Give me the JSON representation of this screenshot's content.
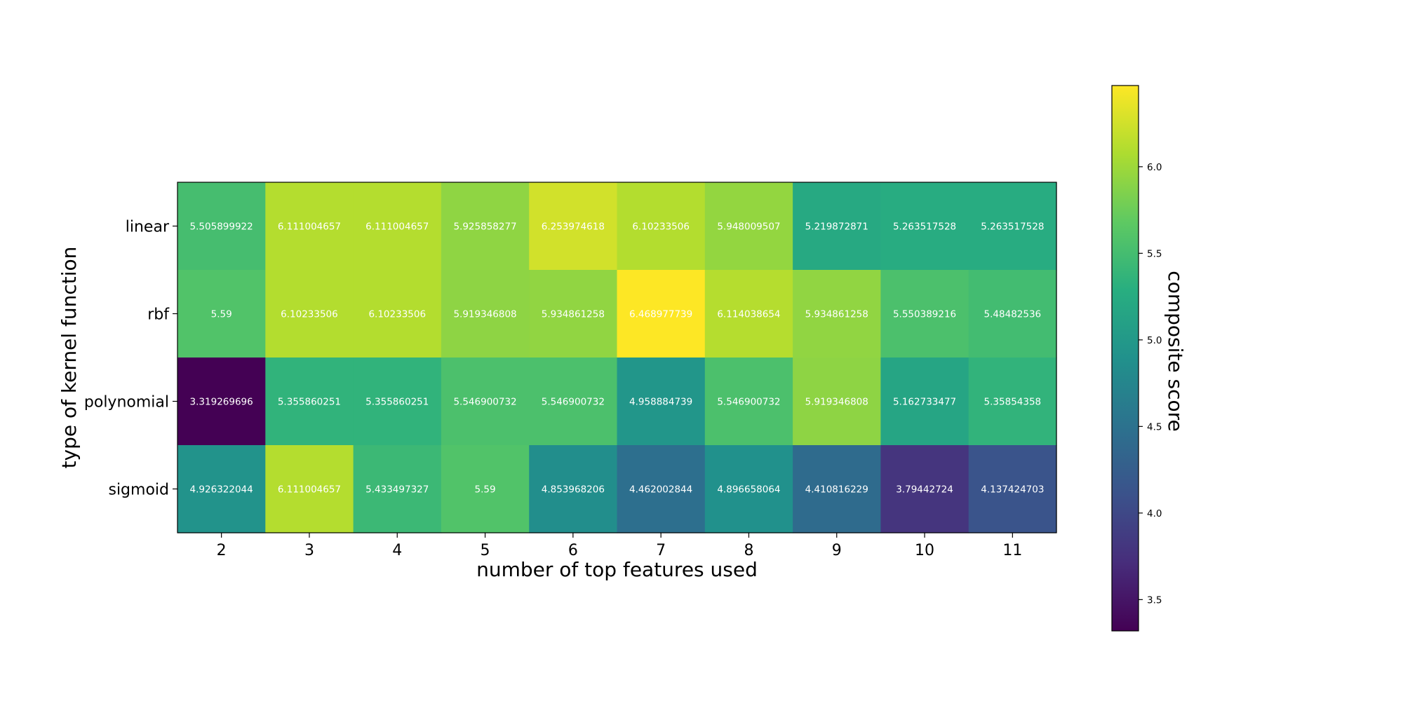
{
  "chart_data": {
    "type": "heatmap",
    "title": "",
    "xlabel": "number of top features used",
    "ylabel": "type of kernel function",
    "x_categories": [
      "2",
      "3",
      "4",
      "5",
      "6",
      "7",
      "8",
      "9",
      "10",
      "11"
    ],
    "y_categories": [
      "linear",
      "rbf",
      "polynomial",
      "sigmoid"
    ],
    "values": [
      [
        5.505899922,
        6.111004657,
        6.111004657,
        5.925858277,
        6.253974618,
        6.10233506,
        5.948009507,
        5.219872871,
        5.263517528,
        5.263517528
      ],
      [
        5.59,
        6.10233506,
        6.10233506,
        5.919346808,
        5.934861258,
        6.468977739,
        6.114038654,
        5.934861258,
        5.550389216,
        5.48482536
      ],
      [
        3.319269696,
        5.355860251,
        5.355860251,
        5.546900732,
        5.546900732,
        4.958884739,
        5.546900732,
        5.919346808,
        5.162733477,
        5.35854358
      ],
      [
        4.926322044,
        6.111004657,
        5.433497327,
        5.59,
        4.853968206,
        4.462002844,
        4.896658064,
        4.410816229,
        3.79442724,
        4.137424703
      ]
    ],
    "value_labels": [
      [
        "5.505899922",
        "6.111004657",
        "6.111004657",
        "5.925858277",
        "6.253974618",
        "6.10233506",
        "5.948009507",
        "5.219872871",
        "5.263517528",
        "5.263517528"
      ],
      [
        "5.59",
        "6.10233506",
        "6.10233506",
        "5.919346808",
        "5.934861258",
        "6.468977739",
        "6.114038654",
        "5.934861258",
        "5.550389216",
        "5.48482536"
      ],
      [
        "3.319269696",
        "5.355860251",
        "5.355860251",
        "5.546900732",
        "5.546900732",
        "4.958884739",
        "5.546900732",
        "5.919346808",
        "5.162733477",
        "5.35854358"
      ],
      [
        "4.926322044",
        "6.111004657",
        "5.433497327",
        "5.59",
        "4.853968206",
        "4.462002844",
        "4.896658064",
        "4.410816229",
        "3.79442724",
        "4.137424703"
      ]
    ],
    "colormap": "viridis",
    "colorbar": {
      "label": "composite score",
      "vmin": 3.319269696,
      "vmax": 6.468977739,
      "ticks": [
        3.5,
        4.0,
        4.5,
        5.0,
        5.5,
        6.0
      ],
      "tick_labels": [
        "3.5",
        "4.0",
        "4.5",
        "5.0",
        "5.5",
        "6.0"
      ]
    },
    "grid": false,
    "legend": "none"
  }
}
